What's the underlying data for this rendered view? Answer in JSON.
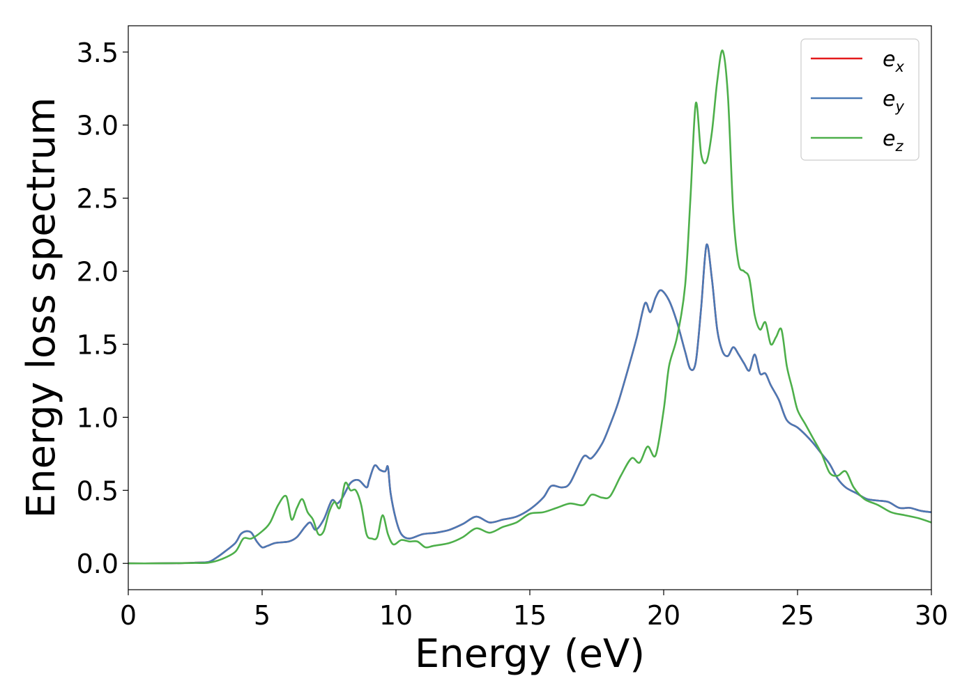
{
  "chart_data": {
    "type": "line",
    "title": "",
    "xlabel": "Energy (eV)",
    "ylabel": "Energy loss spectrum",
    "xlim": [
      0,
      30
    ],
    "ylim": [
      -0.18,
      3.68
    ],
    "xticks": [
      0,
      5,
      10,
      15,
      20,
      25,
      30
    ],
    "xtick_labels": [
      "0",
      "5",
      "10",
      "15",
      "20",
      "25",
      "30"
    ],
    "yticks": [
      0.0,
      0.5,
      1.0,
      1.5,
      2.0,
      2.5,
      3.0,
      3.5
    ],
    "ytick_labels": [
      "0.0",
      "0.5",
      "1.0",
      "1.5",
      "2.0",
      "2.5",
      "3.0",
      "3.5"
    ],
    "grid": false,
    "legend_position": "top-right",
    "series": [
      {
        "name": "e_x",
        "legend_main": "e",
        "legend_sub": "x",
        "color": "#e41a1c",
        "x": [
          0,
          1,
          2,
          2.5,
          3,
          3.3,
          3.6,
          4,
          4.2,
          4.4,
          4.6,
          4.8,
          5,
          5.2,
          5.5,
          6,
          6.3,
          6.6,
          6.8,
          7,
          7.3,
          7.6,
          7.8,
          8,
          8.3,
          8.6,
          8.9,
          9,
          9.2,
          9.4,
          9.6,
          9.7,
          9.8,
          10,
          10.2,
          10.5,
          11,
          11.5,
          12,
          12.5,
          13,
          13.5,
          14,
          14.5,
          15,
          15.5,
          15.8,
          16.2,
          16.5,
          17,
          17.3,
          17.7,
          18,
          18.3,
          18.7,
          19,
          19.3,
          19.5,
          19.7,
          19.9,
          20.2,
          20.5,
          20.8,
          21,
          21.2,
          21.4,
          21.6,
          21.8,
          22,
          22.2,
          22.4,
          22.6,
          22.8,
          23,
          23.2,
          23.4,
          23.6,
          23.8,
          24,
          24.3,
          24.6,
          25,
          25.3,
          25.6,
          25.9,
          26.2,
          26.5,
          26.8,
          27.2,
          27.6,
          28,
          28.4,
          28.8,
          29.2,
          29.6,
          30
        ],
        "y": [
          0.0,
          0.0,
          0.002,
          0.005,
          0.01,
          0.04,
          0.08,
          0.14,
          0.2,
          0.22,
          0.21,
          0.15,
          0.11,
          0.12,
          0.14,
          0.15,
          0.18,
          0.25,
          0.28,
          0.23,
          0.3,
          0.43,
          0.41,
          0.45,
          0.55,
          0.57,
          0.52,
          0.57,
          0.67,
          0.64,
          0.63,
          0.66,
          0.48,
          0.3,
          0.2,
          0.17,
          0.2,
          0.21,
          0.23,
          0.27,
          0.32,
          0.28,
          0.3,
          0.32,
          0.37,
          0.45,
          0.53,
          0.52,
          0.55,
          0.73,
          0.72,
          0.82,
          0.95,
          1.1,
          1.35,
          1.55,
          1.78,
          1.72,
          1.82,
          1.87,
          1.8,
          1.65,
          1.45,
          1.33,
          1.38,
          1.75,
          2.18,
          1.95,
          1.6,
          1.45,
          1.42,
          1.48,
          1.43,
          1.37,
          1.32,
          1.43,
          1.3,
          1.3,
          1.22,
          1.12,
          0.98,
          0.93,
          0.88,
          0.82,
          0.75,
          0.68,
          0.58,
          0.52,
          0.48,
          0.44,
          0.43,
          0.42,
          0.38,
          0.38,
          0.36,
          0.35
        ]
      },
      {
        "name": "e_y",
        "legend_main": "e",
        "legend_sub": "y",
        "color": "#4a79b5",
        "x": [
          0,
          1,
          2,
          2.5,
          3,
          3.3,
          3.6,
          4,
          4.2,
          4.4,
          4.6,
          4.8,
          5,
          5.2,
          5.5,
          6,
          6.3,
          6.6,
          6.8,
          7,
          7.3,
          7.6,
          7.8,
          8,
          8.3,
          8.6,
          8.9,
          9,
          9.2,
          9.4,
          9.6,
          9.7,
          9.8,
          10,
          10.2,
          10.5,
          11,
          11.5,
          12,
          12.5,
          13,
          13.5,
          14,
          14.5,
          15,
          15.5,
          15.8,
          16.2,
          16.5,
          17,
          17.3,
          17.7,
          18,
          18.3,
          18.7,
          19,
          19.3,
          19.5,
          19.7,
          19.9,
          20.2,
          20.5,
          20.8,
          21,
          21.2,
          21.4,
          21.6,
          21.8,
          22,
          22.2,
          22.4,
          22.6,
          22.8,
          23,
          23.2,
          23.4,
          23.6,
          23.8,
          24,
          24.3,
          24.6,
          25,
          25.3,
          25.6,
          25.9,
          26.2,
          26.5,
          26.8,
          27.2,
          27.6,
          28,
          28.4,
          28.8,
          29.2,
          29.6,
          30
        ],
        "y": [
          0.0,
          0.0,
          0.002,
          0.005,
          0.01,
          0.04,
          0.08,
          0.14,
          0.2,
          0.22,
          0.21,
          0.15,
          0.11,
          0.12,
          0.14,
          0.15,
          0.18,
          0.25,
          0.28,
          0.23,
          0.3,
          0.43,
          0.41,
          0.45,
          0.55,
          0.57,
          0.52,
          0.57,
          0.67,
          0.64,
          0.63,
          0.66,
          0.48,
          0.3,
          0.2,
          0.17,
          0.2,
          0.21,
          0.23,
          0.27,
          0.32,
          0.28,
          0.3,
          0.32,
          0.37,
          0.45,
          0.53,
          0.52,
          0.55,
          0.73,
          0.72,
          0.82,
          0.95,
          1.1,
          1.35,
          1.55,
          1.78,
          1.72,
          1.82,
          1.87,
          1.8,
          1.65,
          1.45,
          1.33,
          1.38,
          1.75,
          2.18,
          1.95,
          1.6,
          1.45,
          1.42,
          1.48,
          1.43,
          1.37,
          1.32,
          1.43,
          1.3,
          1.3,
          1.22,
          1.12,
          0.98,
          0.93,
          0.88,
          0.82,
          0.75,
          0.68,
          0.58,
          0.52,
          0.48,
          0.44,
          0.43,
          0.42,
          0.38,
          0.38,
          0.36,
          0.35
        ]
      },
      {
        "name": "e_z",
        "legend_main": "e",
        "legend_sub": "z",
        "color": "#4daf4a",
        "x": [
          0,
          1,
          2,
          2.5,
          3,
          3.5,
          4,
          4.3,
          4.6,
          5,
          5.3,
          5.6,
          5.9,
          6.1,
          6.3,
          6.5,
          6.7,
          6.9,
          7.1,
          7.3,
          7.5,
          7.7,
          7.9,
          8.1,
          8.3,
          8.5,
          8.7,
          8.9,
          9.1,
          9.3,
          9.5,
          9.7,
          9.9,
          10.2,
          10.5,
          10.8,
          11.1,
          11.4,
          12,
          12.5,
          13,
          13.5,
          14,
          14.5,
          15,
          15.5,
          16,
          16.5,
          17,
          17.3,
          17.7,
          18,
          18.4,
          18.8,
          19.1,
          19.4,
          19.7,
          20,
          20.2,
          20.5,
          20.8,
          21,
          21.2,
          21.4,
          21.6,
          21.8,
          22,
          22.2,
          22.4,
          22.6,
          22.8,
          23,
          23.2,
          23.4,
          23.6,
          23.8,
          24,
          24.2,
          24.4,
          24.6,
          24.8,
          25,
          25.3,
          25.6,
          25.9,
          26.2,
          26.5,
          26.8,
          27.1,
          27.5,
          28,
          28.5,
          29,
          29.5,
          30
        ],
        "y": [
          0.0,
          0.0,
          0.002,
          0.003,
          0.005,
          0.03,
          0.08,
          0.17,
          0.17,
          0.22,
          0.28,
          0.4,
          0.46,
          0.3,
          0.38,
          0.44,
          0.35,
          0.3,
          0.2,
          0.22,
          0.35,
          0.42,
          0.38,
          0.55,
          0.5,
          0.5,
          0.4,
          0.2,
          0.17,
          0.18,
          0.33,
          0.2,
          0.13,
          0.16,
          0.15,
          0.15,
          0.11,
          0.12,
          0.14,
          0.18,
          0.24,
          0.21,
          0.25,
          0.28,
          0.34,
          0.35,
          0.38,
          0.41,
          0.4,
          0.47,
          0.45,
          0.46,
          0.6,
          0.72,
          0.69,
          0.8,
          0.74,
          1.05,
          1.35,
          1.55,
          1.9,
          2.5,
          3.15,
          2.8,
          2.75,
          2.95,
          3.3,
          3.51,
          3.2,
          2.4,
          2.05,
          2.0,
          1.95,
          1.7,
          1.6,
          1.65,
          1.5,
          1.55,
          1.6,
          1.35,
          1.2,
          1.05,
          0.95,
          0.85,
          0.75,
          0.62,
          0.6,
          0.63,
          0.52,
          0.44,
          0.4,
          0.35,
          0.33,
          0.31,
          0.28
        ]
      }
    ]
  }
}
